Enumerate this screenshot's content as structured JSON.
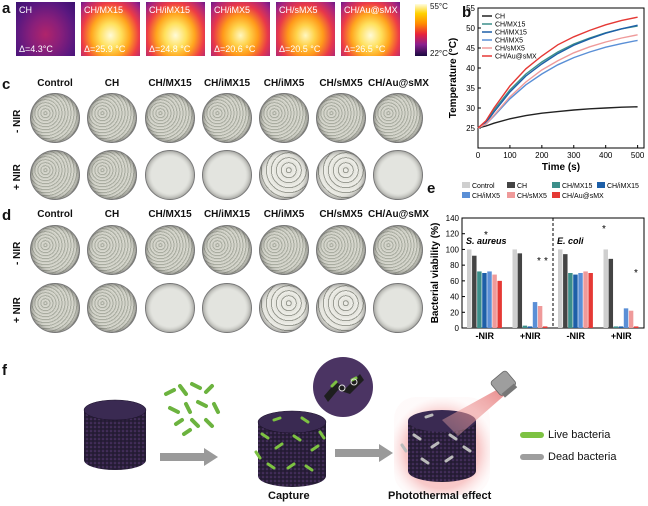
{
  "panels": {
    "a": "a",
    "b": "b",
    "c": "c",
    "d": "d",
    "e": "e",
    "f": "f"
  },
  "panel_a": {
    "images": [
      {
        "label": "CH",
        "delta": "Δ=4.3°C"
      },
      {
        "label": "CH/MX15",
        "delta": "Δ=25.9 °C"
      },
      {
        "label": "CH/iMX15",
        "delta": "Δ=24.8 °C"
      },
      {
        "label": "CH/iMX5",
        "delta": "Δ=20.6 °C"
      },
      {
        "label": "CH/sMX5",
        "delta": "Δ=20.5 °C"
      },
      {
        "label": "CH/Au@sMX",
        "delta": "Δ=26.5 °C"
      }
    ],
    "colorbar_max": "55°C",
    "colorbar_min": "22°C"
  },
  "panel_c": {
    "columns": [
      "Control",
      "CH",
      "CH/MX15",
      "CH/iMX15",
      "CH/iMX5",
      "CH/sMX5",
      "CH/Au@sMX"
    ],
    "rows": [
      "- NIR",
      "+ NIR"
    ]
  },
  "panel_d": {
    "columns": [
      "Control",
      "CH",
      "CH/MX15",
      "CH/iMX15",
      "CH/iMX5",
      "CH/sMX5",
      "CH/Au@sMX"
    ],
    "rows": [
      "- NIR",
      "+ NIR"
    ]
  },
  "panel_f": {
    "capture_label": "Capture",
    "photothermal_label": "Photothermal effect",
    "legend_live": "Live bacteria",
    "legend_dead": "Dead bacteria"
  },
  "chart_data": [
    {
      "type": "line",
      "xlabel": "Time (s)",
      "ylabel": "Temperature (°C)",
      "xlim": [
        0,
        520
      ],
      "ylim": [
        20,
        55
      ],
      "xticks": [
        0,
        100,
        200,
        300,
        400,
        500
      ],
      "yticks": [
        25,
        30,
        35,
        40,
        45,
        50,
        55
      ],
      "legend_position": "top-left",
      "x": [
        0,
        25,
        50,
        100,
        150,
        200,
        250,
        300,
        350,
        400,
        450,
        500
      ],
      "series": [
        {
          "name": "CH",
          "color": "#222222",
          "values": [
            25,
            25.5,
            26.2,
            27.3,
            28.1,
            28.7,
            29.1,
            29.5,
            29.8,
            30.0,
            30.2,
            30.3
          ]
        },
        {
          "name": "CH/MX15",
          "color": "#3c8f8a",
          "values": [
            25,
            26.5,
            29.5,
            34.5,
            38.5,
            41.5,
            44.0,
            46.0,
            47.5,
            48.8,
            49.8,
            50.5
          ]
        },
        {
          "name": "CH/iMX15",
          "color": "#1d5fa8",
          "values": [
            25,
            26.3,
            29.0,
            34.0,
            38.0,
            41.0,
            43.6,
            45.7,
            47.3,
            48.7,
            49.8,
            50.7
          ]
        },
        {
          "name": "CH/iMX5",
          "color": "#5a8fd6",
          "values": [
            25,
            26.0,
            28.0,
            32.3,
            35.8,
            38.5,
            40.8,
            42.6,
            44.0,
            45.2,
            46.1,
            46.9
          ]
        },
        {
          "name": "CH/sMX5",
          "color": "#ef9a9a",
          "values": [
            25,
            26.0,
            28.2,
            32.8,
            36.5,
            39.5,
            41.8,
            43.8,
            45.3,
            46.5,
            47.5,
            48.3
          ]
        },
        {
          "name": "CH/Au@sMX",
          "color": "#e53935",
          "values": [
            25,
            26.8,
            30.0,
            35.5,
            39.8,
            43.0,
            45.8,
            47.8,
            49.4,
            50.8,
            51.9,
            52.7
          ]
        }
      ]
    },
    {
      "type": "bar",
      "ylabel": "Bacterial viability (%)",
      "ylim": [
        0,
        140
      ],
      "yticks": [
        0,
        20,
        40,
        60,
        80,
        100,
        120,
        140
      ],
      "categories": [
        "-NIR",
        "+NIR",
        "-NIR",
        "+NIR"
      ],
      "group_titles": [
        "S. aureus",
        "E. coli"
      ],
      "significance_marks": [
        "*",
        "*",
        "*",
        "*",
        "*"
      ],
      "legend_position": "top",
      "series": [
        {
          "name": "Control",
          "color": "#cfcfcf",
          "values": [
            100,
            100,
            100,
            100
          ]
        },
        {
          "name": "CH",
          "color": "#444444",
          "values": [
            92,
            95,
            94,
            88
          ]
        },
        {
          "name": "CH/MX15",
          "color": "#3c8f8a",
          "values": [
            72,
            3,
            70,
            2
          ]
        },
        {
          "name": "CH/iMX15",
          "color": "#1d5fa8",
          "values": [
            70,
            2,
            68,
            2
          ]
        },
        {
          "name": "CH/iMX5",
          "color": "#5a8fd6",
          "values": [
            72,
            33,
            70,
            25
          ]
        },
        {
          "name": "CH/sMX5",
          "color": "#ef9a9a",
          "values": [
            68,
            28,
            72,
            22
          ]
        },
        {
          "name": "CH/Au@sMX",
          "color": "#e53935",
          "values": [
            60,
            2,
            70,
            2
          ]
        }
      ]
    }
  ]
}
